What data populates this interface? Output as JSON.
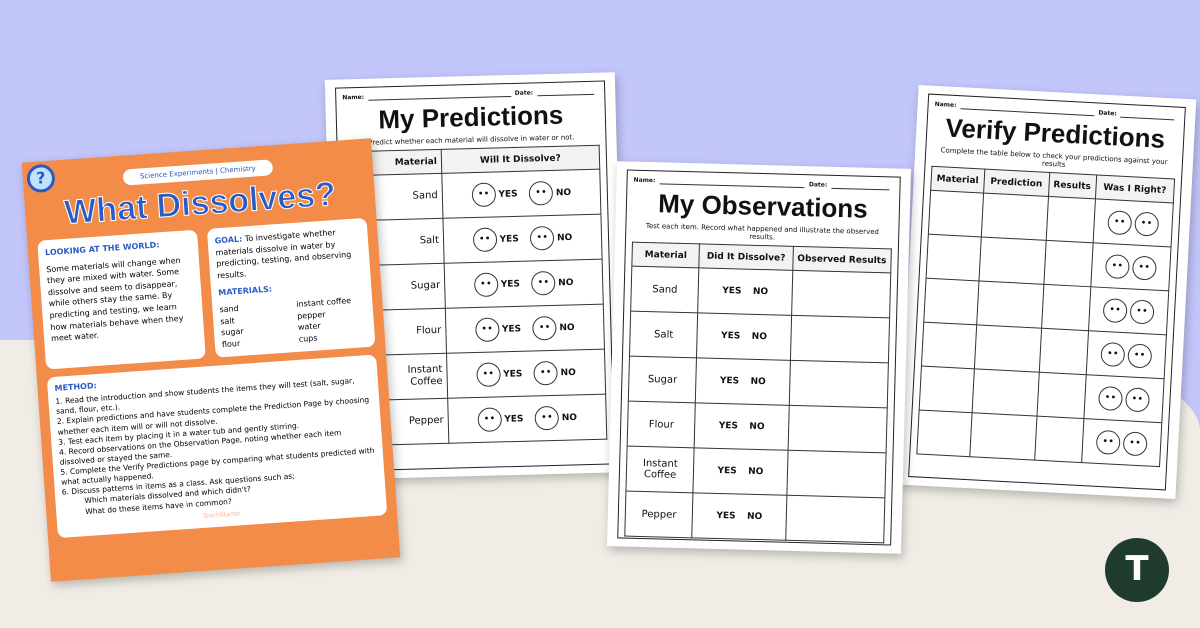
{
  "colors": {
    "background_top": "#c3c6fb",
    "background_bottom": "#f1ede6",
    "poster": "#f28c48",
    "accent": "#2a5bc4",
    "logo": "#1e3b2e"
  },
  "poster": {
    "tag": "Science Experiments | Chemistry",
    "title": "What Dissolves?",
    "icon": "magnifying-glass-question-icon",
    "looking_heading": "LOOKING AT THE WORLD:",
    "looking_text": "Some materials will change when they are mixed with water. Some dissolve and seem to disappear, while others stay the same. By predicting and testing, we learn how materials behave when they meet water.",
    "goal_heading": "GOAL:",
    "goal_text": "To investigate whether materials dissolve in water by predicting, testing, and observing results.",
    "materials_heading": "MATERIALS:",
    "materials": [
      "sand",
      "salt",
      "sugar",
      "flour",
      "instant coffee",
      "pepper",
      "water",
      "cups"
    ],
    "method_heading": "METHOD:",
    "method": [
      "1. Read the introduction and show students the items they will test (salt, sugar, sand, flour, etc.).",
      "2. Explain predictions and have students complete the Prediction Page by choosing whether each item will or will not dissolve.",
      "3. Test each item by placing it in a water tub and gently stirring.",
      "4. Record observations on the Observation Page, noting whether each item dissolved or stayed the same.",
      "5. Complete the Verify Predictions page by comparing what students predicted with what actually happened.",
      "6. Discuss patterns in items as a class. Ask questions such as;"
    ],
    "questions": [
      "Which materials dissolved and which didn't?",
      "What do these items have in common?"
    ],
    "brand": "TeachStarter"
  },
  "name_label": "Name:",
  "date_label": "Date:",
  "predictions": {
    "title": "My Predictions",
    "instructions": "Predict whether each material will dissolve in water or not.",
    "headers": [
      "Material",
      "Will It Dissolve?"
    ],
    "rows": [
      "Sand",
      "Salt",
      "Sugar",
      "Flour",
      "Instant Coffee",
      "Pepper"
    ],
    "yes": "YES",
    "no": "NO"
  },
  "observations": {
    "title": "My Observations",
    "instructions": "Test each item. Record what happened and illustrate the observed results.",
    "headers": [
      "Material",
      "Did It Dissolve?",
      "Observed Results"
    ],
    "rows": [
      "Sand",
      "Salt",
      "Sugar",
      "Flour",
      "Instant Coffee",
      "Pepper"
    ],
    "yes": "YES",
    "no": "NO"
  },
  "verify": {
    "title": "Verify Predictions",
    "instructions": "Complete the table below to check your predictions against your results",
    "headers": [
      "Material",
      "Prediction",
      "Results",
      "Was I Right?"
    ],
    "row_count": 6
  },
  "logo_letter": "T"
}
